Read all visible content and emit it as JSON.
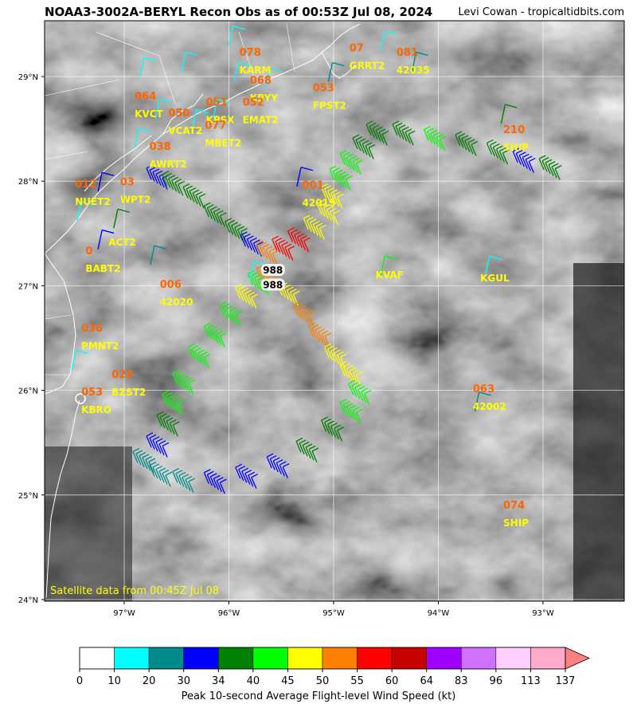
{
  "title": "NOAA3-3002A-BERYL Recon Obs as of 00:53Z Jul 08, 2024",
  "credit": "Levi Cowan - tropicaltidbits.com",
  "satellite_note": "Satellite data from 00:45Z Jul 08",
  "axes": {
    "lat_labels": [
      "24°N",
      "25°N",
      "26°N",
      "27°N",
      "28°N",
      "29°N"
    ],
    "lon_labels": [
      "97°W",
      "96°W",
      "95°W",
      "94°W",
      "93°W"
    ]
  },
  "stations": [
    {
      "id": "KARM",
      "value": "078",
      "lon": -95.9,
      "lat": 29.2
    },
    {
      "id": "GRRT2",
      "value": "07",
      "lon": -94.85,
      "lat": 29.24
    },
    {
      "id": "42035",
      "value": "081",
      "lon": -94.4,
      "lat": 29.2
    },
    {
      "id": "KVCT",
      "value": "064",
      "lon": -96.9,
      "lat": 28.78
    },
    {
      "id": "KBYY",
      "value": "068",
      "lon": -95.8,
      "lat": 28.93
    },
    {
      "id": "FPST2",
      "value": "053",
      "lon": -95.2,
      "lat": 28.86
    },
    {
      "id": "VCAT2",
      "value": "050",
      "lon": -96.58,
      "lat": 28.62
    },
    {
      "id": "KPSX",
      "value": "051",
      "lon": -96.22,
      "lat": 28.72
    },
    {
      "id": "EMAT2",
      "value": "052",
      "lon": -95.87,
      "lat": 28.72
    },
    {
      "id": "MBET2",
      "value": "077",
      "lon": -96.23,
      "lat": 28.5
    },
    {
      "id": "AWRT2",
      "value": "038",
      "lon": -96.76,
      "lat": 28.3
    },
    {
      "id": "NUET2",
      "value": "012",
      "lon": -97.47,
      "lat": 27.94
    },
    {
      "id": "WPT2",
      "value": "03",
      "lon": -97.04,
      "lat": 27.96
    },
    {
      "id": "ACT2",
      "value": "",
      "lon": -97.15,
      "lat": 27.55
    },
    {
      "id": "BABT2",
      "value": "0",
      "lon": -97.37,
      "lat": 27.3
    },
    {
      "id": "42020",
      "value": "006",
      "lon": -96.66,
      "lat": 26.98
    },
    {
      "id": "42019",
      "value": "001",
      "lon": -95.3,
      "lat": 27.93
    },
    {
      "id": "SHIP",
      "value": "210",
      "lon": -93.38,
      "lat": 28.46
    },
    {
      "id": "KVAF",
      "value": "",
      "lon": -94.6,
      "lat": 27.24
    },
    {
      "id": "KGUL",
      "value": "",
      "lon": -93.6,
      "lat": 27.21
    },
    {
      "id": "PMNT2",
      "value": "036",
      "lon": -97.41,
      "lat": 26.56
    },
    {
      "id": "BZST2",
      "value": "025",
      "lon": -97.12,
      "lat": 26.12
    },
    {
      "id": "KBRO",
      "value": "053",
      "lon": -97.41,
      "lat": 25.95
    },
    {
      "id": "42002",
      "value": "063",
      "lon": -93.67,
      "lat": 25.98
    },
    {
      "id": "SHIP",
      "value": "074",
      "lon": -93.38,
      "lat": 24.87
    }
  ],
  "pressure_labels": [
    {
      "value": "988",
      "lon": -95.58,
      "lat": 27.14
    },
    {
      "value": "988",
      "lon": -95.58,
      "lat": 27.0
    }
  ],
  "colors": {
    "station_value": "#ff6600",
    "station_id": "#ffff00",
    "satellite_note": "#ffff00",
    "coast": "#ffffff",
    "grid": "#ffffff"
  },
  "colorbar": {
    "label": "Peak 10-second Average Flight-level Wind Speed (kt)",
    "ticks": [
      "0",
      "10",
      "20",
      "30",
      "34",
      "40",
      "45",
      "50",
      "55",
      "60",
      "64",
      "83",
      "96",
      "113",
      "137"
    ],
    "colors": [
      "#ffffff",
      "#00ffff",
      "#008b8b",
      "#0000ff",
      "#008000",
      "#00ff00",
      "#ffff00",
      "#ff7f00",
      "#ff0000",
      "#c80000",
      "#a000ff",
      "#d070ff",
      "#ffd0ff",
      "#ffaaca"
    ],
    "extend_color": "#ff8080"
  }
}
